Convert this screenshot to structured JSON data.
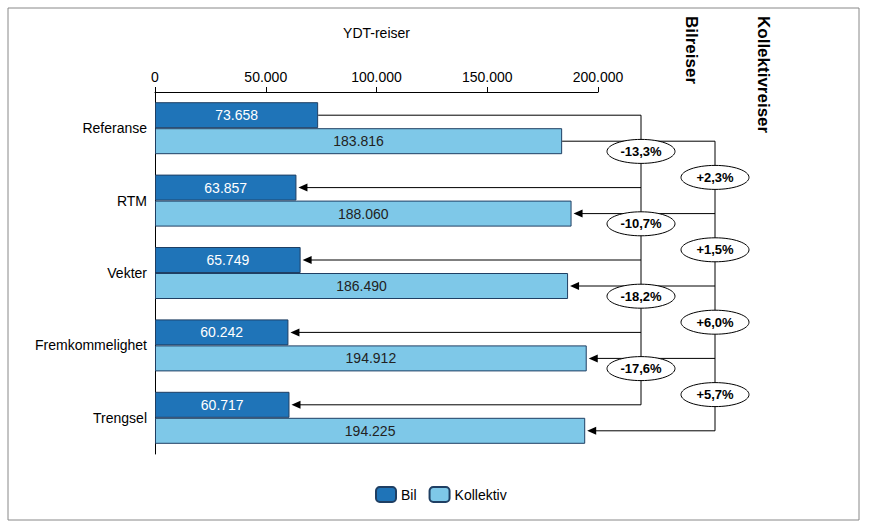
{
  "chart_data": {
    "type": "bar",
    "orientation": "horizontal",
    "x_label": "YDT-reiser",
    "categories": [
      "Referanse",
      "RTM",
      "Vekter",
      "Fremkommelighet",
      "Trengsel"
    ],
    "series": [
      {
        "name": "Bil",
        "color": "#1F74B8",
        "values": [
          73658,
          63857,
          65749,
          60242,
          60717
        ],
        "value_labels": [
          "73.658",
          "63.857",
          "65.749",
          "60.242",
          "60.717"
        ]
      },
      {
        "name": "Kollektiv",
        "color": "#7EC8E8",
        "values": [
          183816,
          188060,
          186490,
          194912,
          194225
        ],
        "value_labels": [
          "183.816",
          "188.060",
          "186.490",
          "194.912",
          "194.225"
        ]
      }
    ],
    "xlim": [
      0,
      200000
    ],
    "xticks": [
      0,
      {
        "value": 50000,
        "label": "50.000"
      },
      {
        "value": 100000,
        "label": "100.000"
      },
      {
        "value": 150000,
        "label": "150.000"
      },
      {
        "value": 200000,
        "label": "200.000"
      }
    ],
    "data_labels": true,
    "grid": false,
    "legend": "bottom",
    "annotations": [
      {
        "title": "Bilreiser",
        "series": "Bil",
        "reference": "Referanse",
        "changes": [
          "-13,3%",
          "-10,7%",
          "-18,2%",
          "-17,6%"
        ]
      },
      {
        "title": "Kollektivreiser",
        "series": "Kollektiv",
        "reference": "Referanse",
        "changes": [
          "+2,3%",
          "+1,5%",
          "+6,0%",
          "+5,7%"
        ]
      }
    ]
  }
}
